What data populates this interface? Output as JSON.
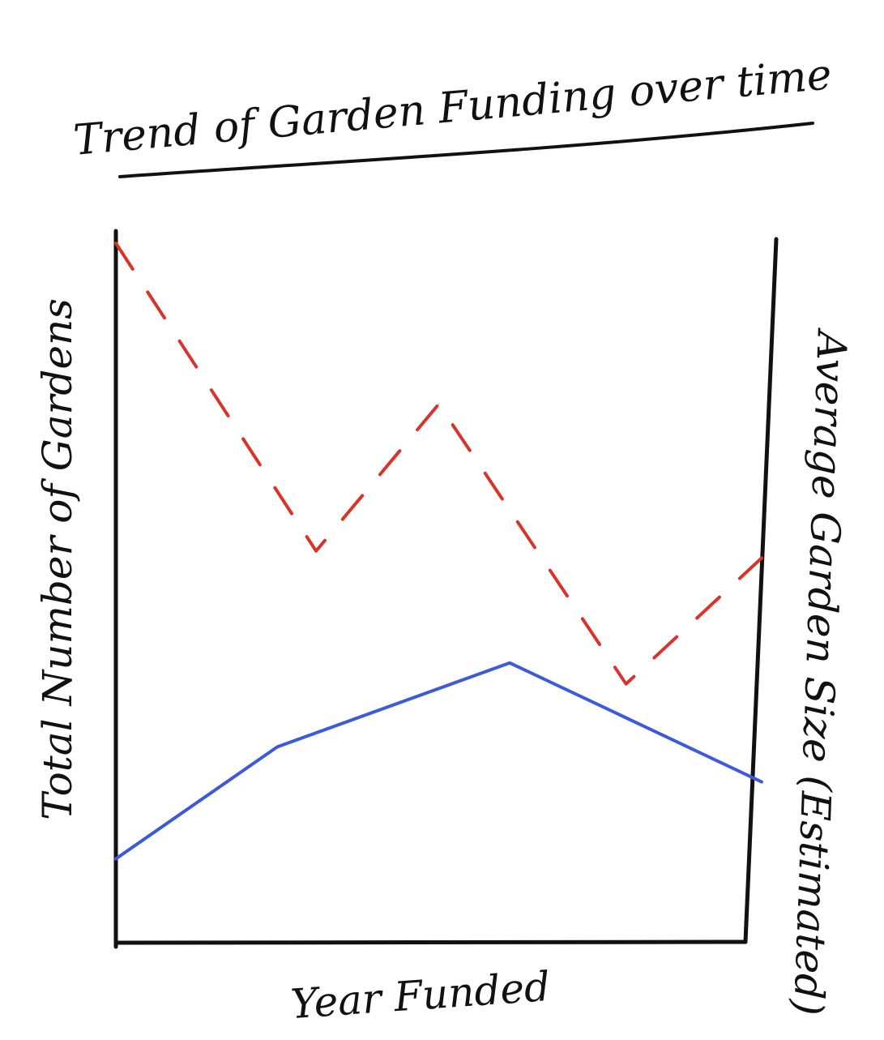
{
  "chart_data": {
    "type": "line",
    "title": "Trend of Garden Funding over time",
    "xlabel": "Year Funded",
    "ylabel": "Total Number of Gardens",
    "y2label": "Average Garden Size (Estimated)",
    "grid": false,
    "legend": "none",
    "xlim": [
      0,
      1
    ],
    "ylim": [
      0,
      1
    ],
    "series": [
      {
        "style": "solid",
        "color": "#3b5bdb",
        "axis": "left",
        "x": [
          0.0,
          0.25,
          0.61,
          1.0
        ],
        "y": [
          0.12,
          0.28,
          0.4,
          0.23
        ]
      },
      {
        "style": "dashed",
        "color": "#d9342b",
        "axis": "right",
        "x": [
          0.0,
          0.31,
          0.5,
          0.79,
          1.0
        ],
        "y": [
          1.0,
          0.56,
          0.77,
          0.37,
          0.55
        ]
      }
    ]
  }
}
